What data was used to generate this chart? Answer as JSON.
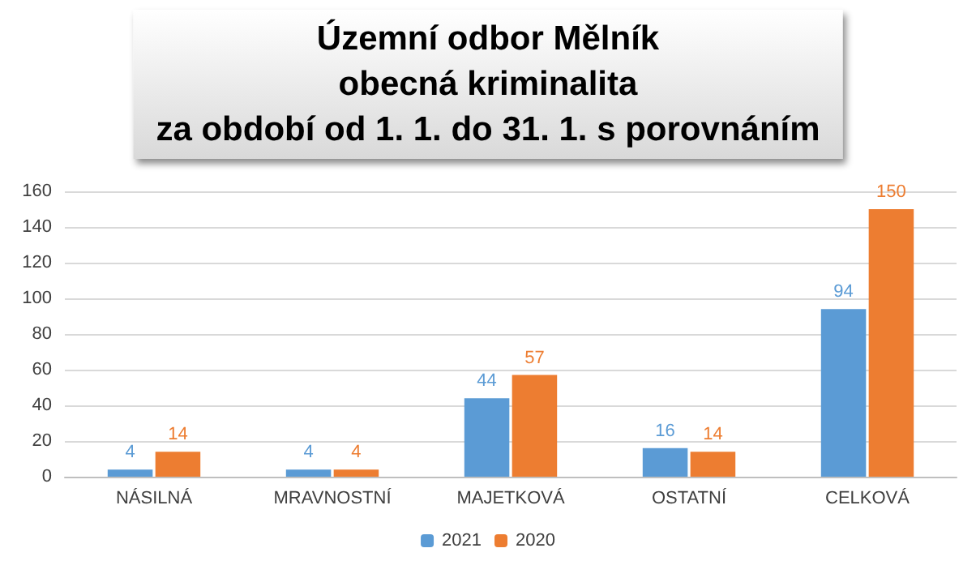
{
  "chart_data": {
    "type": "bar",
    "title": "Územní odbor Mělník\nobecná kriminalita\nza období od 1. 1. do 31. 1. s porovnáním",
    "categories": [
      "NÁSILNÁ",
      "MRAVNOSTNÍ",
      "MAJETKOVÁ",
      "OSTATNÍ",
      "CELKOVÁ"
    ],
    "series": [
      {
        "name": "2021",
        "color": "#5b9bd5",
        "values": [
          4,
          4,
          44,
          16,
          94
        ]
      },
      {
        "name": "2020",
        "color": "#ed7d31",
        "values": [
          14,
          4,
          57,
          14,
          150
        ]
      }
    ],
    "ylim": [
      0,
      160
    ],
    "yticks": [
      0,
      20,
      40,
      60,
      80,
      100,
      120,
      140,
      160
    ],
    "grid": "y",
    "legend": "bottom",
    "data_labels": true
  }
}
